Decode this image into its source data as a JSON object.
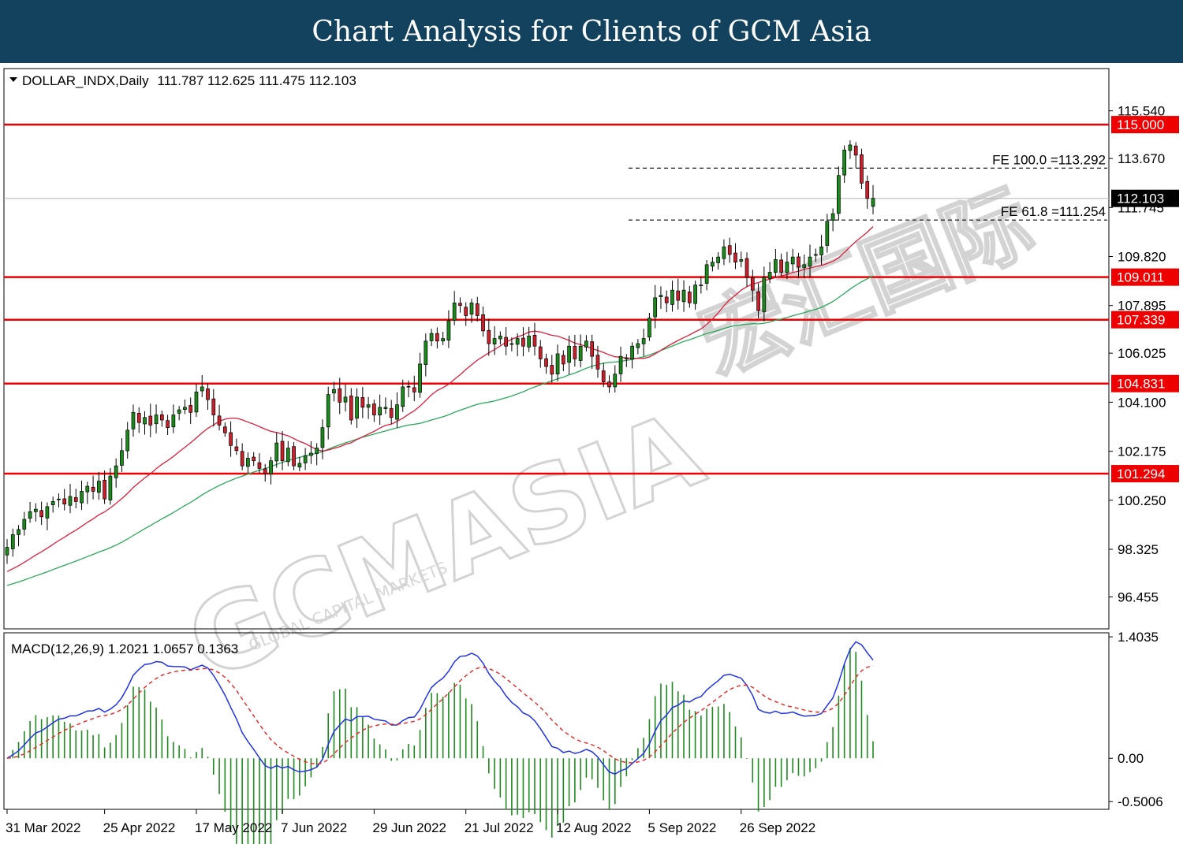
{
  "header": {
    "title": "Chart Analysis for Clients of GCM Asia"
  },
  "watermark": {
    "brand": "GCMASIA",
    "subtext": "GLOBAL CAPITAL MARKETS",
    "cn": "宏汇国际"
  },
  "colors": {
    "bull": "#1a8a1a",
    "bear": "#cc1f2a",
    "sma_short": "#dc1e3c",
    "sma_long": "#2aa85a",
    "level": "#ee0000",
    "macd": "#1f33e6",
    "signal": "#ee2222",
    "hist": "#1f8a1f",
    "banner": "#12425e"
  },
  "chart_data": [
    {
      "type": "candlestick",
      "symbol": "DOLLAR_INDX",
      "timeframe": "Daily",
      "header_values": "111.787 112.625 111.475 112.103",
      "ylim": [
        95.2,
        117.2
      ],
      "yticks": [
        "115.540",
        "113.670",
        "111.745",
        "109.820",
        "107.895",
        "106.025",
        "104.100",
        "102.175",
        "100.250",
        "98.325",
        "96.455"
      ],
      "xticks": [
        "31 Mar 2022",
        "25 Apr 2022",
        "17 May 2022",
        "7 Jun 2022",
        "29 Jun 2022",
        "21 Jul 2022",
        "12 Aug 2022",
        "5 Sep 2022",
        "26 Sep 2022"
      ],
      "last_price": {
        "value": 112.103,
        "label": "112.103"
      },
      "horizontal_levels": [
        {
          "value": 115.0,
          "label": "115.000"
        },
        {
          "value": 109.011,
          "label": "109.011"
        },
        {
          "value": 107.339,
          "label": "107.339"
        },
        {
          "value": 104.831,
          "label": "104.831"
        },
        {
          "value": 101.294,
          "label": "101.294"
        }
      ],
      "fibonacci": [
        {
          "value": 113.292,
          "label": "FE 100.0 =113.292"
        },
        {
          "value": 111.254,
          "label": "FE 61.8 =111.254"
        }
      ],
      "close": [
        98.4,
        98.9,
        99.1,
        99.5,
        99.8,
        99.9,
        99.6,
        100.0,
        100.2,
        100.3,
        100.1,
        100.4,
        100.2,
        100.6,
        100.8,
        100.6,
        101.0,
        100.3,
        101.2,
        101.6,
        102.2,
        103.0,
        103.7,
        103.3,
        103.5,
        103.2,
        103.6,
        103.4,
        103.1,
        103.6,
        103.8,
        103.9,
        103.7,
        104.5,
        104.7,
        104.2,
        103.6,
        103.2,
        102.9,
        102.4,
        102.2,
        101.6,
        101.9,
        101.8,
        101.5,
        101.3,
        101.8,
        102.5,
        101.8,
        102.3,
        101.6,
        101.7,
        102.0,
        102.1,
        102.3,
        103.1,
        104.4,
        104.6,
        104.1,
        104.3,
        103.4,
        104.3,
        103.9,
        104.0,
        103.6,
        103.9,
        103.9,
        103.5,
        104.0,
        104.7,
        104.7,
        104.5,
        105.6,
        106.5,
        106.8,
        106.5,
        106.6,
        107.3,
        108.0,
        107.9,
        107.5,
        108.0,
        107.5,
        106.9,
        106.4,
        106.6,
        106.7,
        106.3,
        106.4,
        106.6,
        106.3,
        106.7,
        106.3,
        105.8,
        105.5,
        105.2,
        106.0,
        105.6,
        106.3,
        105.8,
        106.3,
        106.5,
        105.9,
        105.4,
        104.9,
        104.7,
        105.2,
        105.9,
        105.8,
        106.3,
        106.4,
        106.6,
        107.4,
        108.2,
        108.3,
        108.0,
        108.5,
        108.1,
        108.5,
        108.0,
        108.7,
        108.7,
        109.5,
        109.6,
        109.8,
        110.2,
        109.9,
        109.6,
        109.7,
        109.0,
        108.5,
        107.7,
        109.0,
        109.2,
        109.7,
        109.2,
        109.6,
        109.8,
        109.4,
        109.5,
        109.8,
        109.9,
        110.2,
        111.2,
        111.5,
        113.0,
        114.0,
        114.2,
        113.8,
        112.7,
        112.1,
        112.103
      ]
    },
    {
      "type": "macd",
      "label": "MACD(12,26,9) 1.2021 1.0657 0.1363",
      "ylim": [
        -0.59,
        1.45
      ],
      "yticks": [
        "1.4035",
        "0.00",
        "-0.5006"
      ]
    }
  ]
}
